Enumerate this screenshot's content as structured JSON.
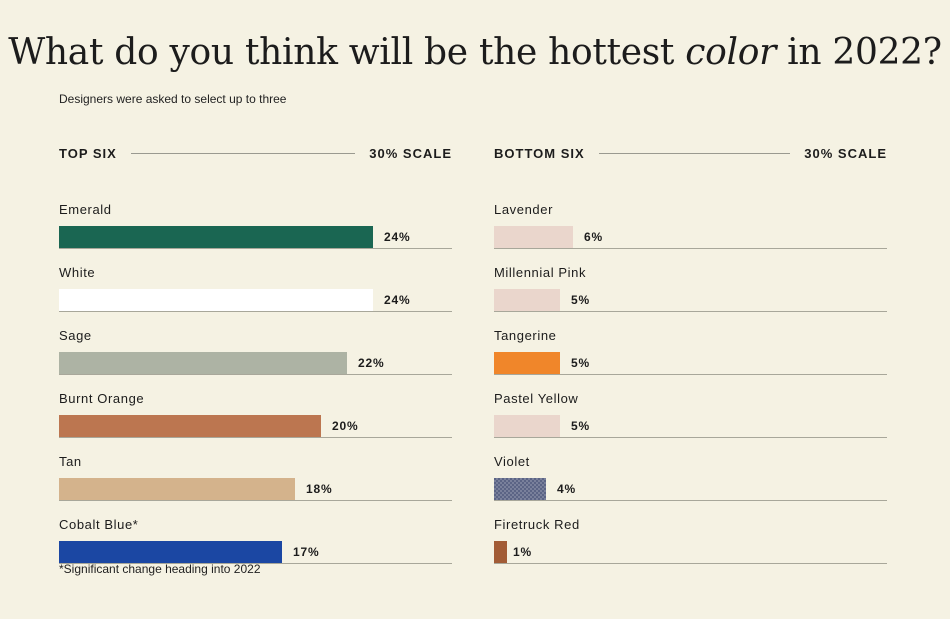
{
  "title_main": "What do you think will be the hottest ",
  "title_em": "color",
  "title_end": " in 2022?",
  "subtitle": "Designers were asked to select up to three",
  "footnote": "*Significant change heading into 2022",
  "chart_data": [
    {
      "type": "bar",
      "orientation": "horizontal",
      "panel_label": "TOP SIX",
      "scale_label": "30% SCALE",
      "xlim": [
        0,
        30
      ],
      "categories": [
        "Emerald",
        "White",
        "Sage",
        "Burnt Orange",
        "Tan",
        "Cobalt Blue*"
      ],
      "values": [
        24,
        24,
        22,
        20,
        18,
        17
      ],
      "value_labels": [
        "24%",
        "24%",
        "22%",
        "20%",
        "18%",
        "17%"
      ],
      "colors": [
        "#1a6652",
        "#ffffff",
        "#adb3a4",
        "#bc7650",
        "#d4b38c",
        "#1b47a3"
      ]
    },
    {
      "type": "bar",
      "orientation": "horizontal",
      "panel_label": "BOTTOM SIX",
      "scale_label": "30% SCALE",
      "xlim": [
        0,
        30
      ],
      "categories": [
        "Lavender",
        "Millennial Pink",
        "Tangerine",
        "Pastel Yellow",
        "Violet",
        "Firetruck Red"
      ],
      "values": [
        6,
        5,
        5,
        5,
        4,
        1
      ],
      "value_labels": [
        "6%",
        "5%",
        "5%",
        "5%",
        "4%",
        "1%"
      ],
      "colors": [
        "#ead6cc",
        "#ead6cc",
        "#f0862a",
        "#ead6cc",
        "#5b6485",
        "#a25c36"
      ]
    }
  ]
}
